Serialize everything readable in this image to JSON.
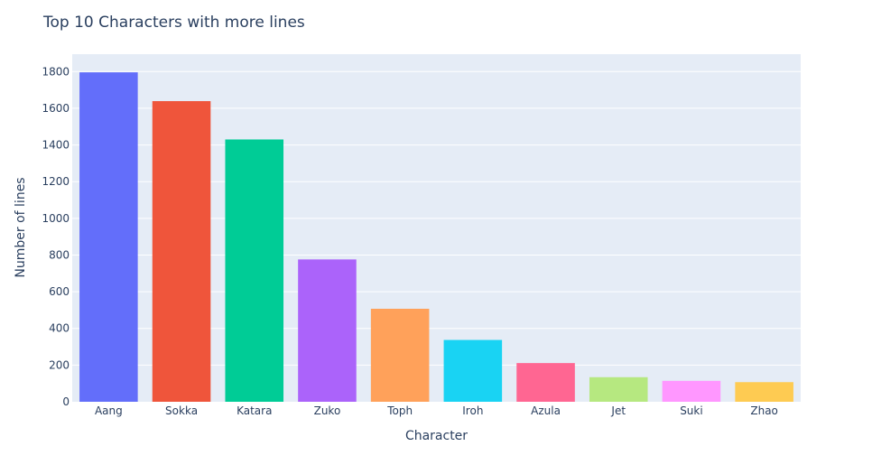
{
  "chart_data": {
    "type": "bar",
    "title": "Top 10 Characters with more lines",
    "xlabel": "Character",
    "ylabel": "Number of lines",
    "categories": [
      "Aang",
      "Sokka",
      "Katara",
      "Zuko",
      "Toph",
      "Iroh",
      "Azula",
      "Jet",
      "Suki",
      "Zhao"
    ],
    "values": [
      1796,
      1639,
      1430,
      776,
      507,
      337,
      211,
      134,
      114,
      107
    ],
    "colors": [
      "#636efa",
      "#ef553b",
      "#00cc96",
      "#ab63fa",
      "#ffa15a",
      "#19d3f3",
      "#ff6692",
      "#b6e880",
      "#ff97ff",
      "#fecb52"
    ],
    "ylim": [
      0,
      1895
    ],
    "yticks": [
      0,
      200,
      400,
      600,
      800,
      1000,
      1200,
      1400,
      1600,
      1800
    ],
    "grid": true,
    "plot_background": "#e5ecf6",
    "gridline_color": "#ffffff"
  }
}
